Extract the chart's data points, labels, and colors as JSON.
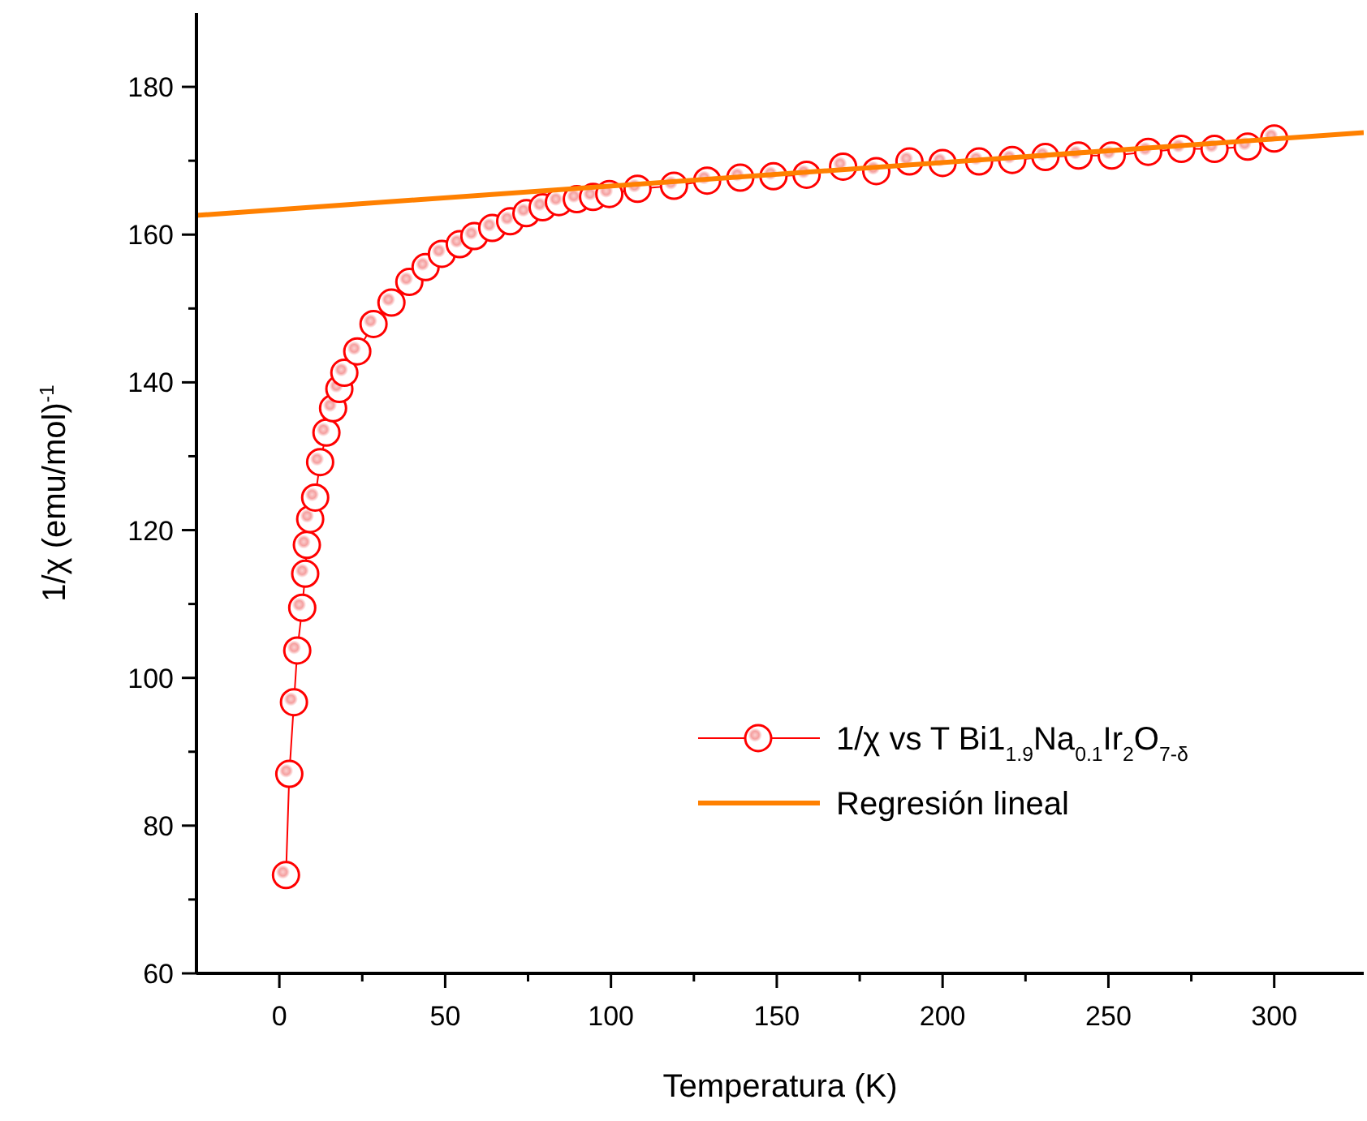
{
  "chart_data": {
    "type": "line",
    "xlabel": "Temperatura (K)",
    "ylabel": "1/χ (emu/mol)$^{-1}$",
    "xlim": [
      -25,
      327
    ],
    "ylim": [
      60,
      190
    ],
    "xticks": [
      0,
      {
        "value": 25,
        "label": null
      },
      50,
      {
        "value": 75,
        "label": null
      },
      100,
      {
        "value": 125,
        "label": null
      },
      150,
      {
        "value": 175,
        "label": null
      },
      200,
      {
        "value": 225,
        "label": null
      },
      250,
      {
        "value": 275,
        "label": null
      },
      300
    ],
    "yticks": [
      60,
      {
        "value": 70,
        "label": null
      },
      80,
      {
        "value": 90,
        "label": null
      },
      100,
      {
        "value": 110,
        "label": null
      },
      120,
      {
        "value": 130,
        "label": null
      },
      140,
      {
        "value": 150,
        "label": null
      },
      160,
      {
        "value": 170,
        "label": null
      },
      180
    ],
    "grid": false,
    "legend": "bottom right",
    "series": [
      {
        "name": "1/χ vs T Bi1$_{1.9}$Na$_{0.1}$Ir$_{2}$O$_{7-δ}$",
        "color": "#ff0000",
        "marker": "circle",
        "line_style": "solid",
        "x": [
          2,
          3,
          4.4,
          5.4,
          6.9,
          7.8,
          8.3,
          9.3,
          10.8,
          12.3,
          14.2,
          16.2,
          18.1,
          19.6,
          23.5,
          28.4,
          33.8,
          39.2,
          44.1,
          49,
          54.4,
          58.8,
          64.2,
          69.6,
          74.5,
          79.4,
          84.3,
          89.7,
          94.6,
          99.5,
          108,
          119,
          129,
          139,
          149,
          159,
          170,
          180,
          190,
          200,
          211,
          221,
          231,
          241,
          251,
          262,
          272,
          282,
          292,
          300
        ],
        "values": [
          73.3,
          87,
          96.7,
          103.7,
          109.5,
          114.1,
          118,
          121.5,
          124.4,
          129.2,
          133.2,
          136.5,
          139.1,
          141.3,
          144.2,
          147.9,
          150.8,
          153.6,
          155.6,
          157.4,
          158.7,
          159.8,
          160.9,
          161.8,
          162.9,
          163.7,
          164.4,
          164.8,
          165.1,
          165.5,
          166.2,
          166.6,
          167.3,
          167.7,
          167.9,
          168.1,
          169.2,
          168.6,
          169.9,
          169.7,
          169.9,
          170.1,
          170.5,
          170.7,
          170.7,
          171.2,
          171.6,
          171.6,
          171.9,
          173
        ]
      },
      {
        "name": "Regresión lineal",
        "color": "#ff8000",
        "marker": "none",
        "line_style": "solid",
        "x": [
          -25,
          327
        ],
        "values": [
          162.6,
          173.8
        ]
      }
    ]
  }
}
